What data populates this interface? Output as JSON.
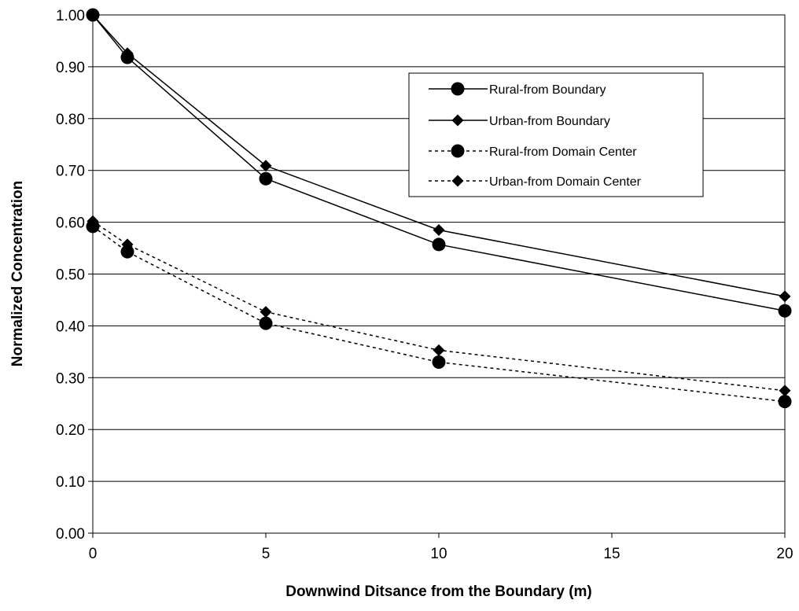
{
  "chart_data": {
    "type": "line",
    "title": "",
    "xlabel": "Downwind Ditsance from the Boundary (m)",
    "ylabel": "Normalized Concentration",
    "xlim": [
      0,
      20
    ],
    "ylim": [
      0,
      1
    ],
    "x_ticks": [
      "0",
      "5",
      "10",
      "15",
      "20"
    ],
    "x_tick_values": [
      0,
      5,
      10,
      15,
      20
    ],
    "y_ticks": [
      "0.00",
      "0.10",
      "0.20",
      "0.30",
      "0.40",
      "0.50",
      "0.60",
      "0.70",
      "0.80",
      "0.90",
      "1.00"
    ],
    "y_tick_values": [
      0,
      0.1,
      0.2,
      0.3,
      0.4,
      0.5,
      0.6,
      0.7,
      0.8,
      0.9,
      1.0
    ],
    "grid": "horizontal",
    "legend_position": "top-right",
    "series": [
      {
        "name": "Rural-from Boundary",
        "marker": "circle",
        "line": "solid",
        "x": [
          0,
          1,
          5,
          10,
          20
        ],
        "y": [
          1.0,
          0.918,
          0.684,
          0.557,
          0.429
        ]
      },
      {
        "name": "Urban-from Boundary",
        "marker": "diamond",
        "line": "solid",
        "x": [
          0,
          1,
          5,
          10,
          20
        ],
        "y": [
          1.0,
          0.926,
          0.709,
          0.585,
          0.457
        ]
      },
      {
        "name": "Rural-from Domain Center",
        "marker": "circle",
        "line": "dotted",
        "x": [
          0,
          1,
          5,
          10,
          20
        ],
        "y": [
          0.592,
          0.543,
          0.405,
          0.33,
          0.254
        ]
      },
      {
        "name": "Urban-from Domain Center",
        "marker": "diamond",
        "line": "dotted",
        "x": [
          0,
          1,
          5,
          10,
          20
        ],
        "y": [
          0.602,
          0.557,
          0.427,
          0.353,
          0.275
        ]
      }
    ]
  },
  "colors": {
    "line": "#000000",
    "grid": "#000000",
    "background": "#ffffff"
  }
}
